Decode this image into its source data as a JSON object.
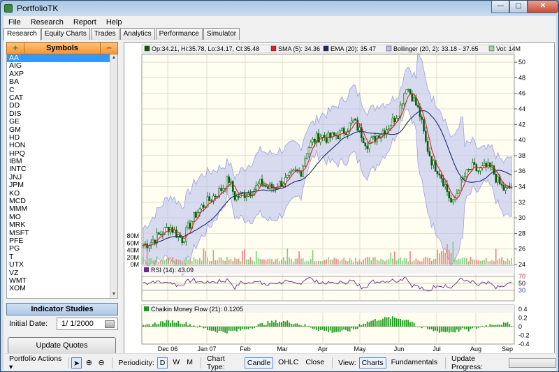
{
  "window": {
    "title": "PortfolioTK",
    "minimize": "—",
    "maximize": "▢",
    "close": "✕"
  },
  "menu": [
    "File",
    "Research",
    "Report",
    "Help"
  ],
  "tabs": [
    "Research",
    "Equity Charts",
    "Trades",
    "Analytics",
    "Performance",
    "Simulator"
  ],
  "symbols": {
    "header": "Symbols",
    "add": "+",
    "remove": "−",
    "items": [
      "AA",
      "AIG",
      "AXP",
      "BA",
      "C",
      "CAT",
      "DD",
      "DIS",
      "GE",
      "GM",
      "HD",
      "HON",
      "HPQ",
      "IBM",
      "INTC",
      "JNJ",
      "JPM",
      "KO",
      "MCD",
      "MMM",
      "MO",
      "MRK",
      "MSFT",
      "PFE",
      "PG",
      "T",
      "UTX",
      "VZ",
      "WMT",
      "XOM"
    ],
    "selected": "AA"
  },
  "indicator_studies": "Indicator Studies",
  "initial_date": {
    "label": "Initial Date:",
    "value": "1/ 1/2000"
  },
  "update_quotes": "Update Quotes",
  "legend": {
    "ohlc": "Op:34.21, Hi:35.78, Lo:34.17, Cl:35.48",
    "sma": "SMA (5): 34.36",
    "ema": "EMA (20): 35.47",
    "bollinger": "Bollinger (20, 2): 33.18 - 37.65",
    "vol": "Vol: 14M",
    "rsi": "RSI (14): 43.09",
    "cmf": "Chaikin Money Flow (21): 0.1205"
  },
  "colors": {
    "sma": "#e02020",
    "ema": "#1a2a6c",
    "bollinger": "#b8bdf0",
    "candle": "#006400",
    "vol_up": "#7ccd7c",
    "vol_down": "#f08080",
    "rsi": "#6a2a8a",
    "cmf": "#1a9a1a",
    "ohlc_sq": "#0a5a0a",
    "vol_sq": "#9ad89a"
  },
  "price_axis": [
    "50",
    "48",
    "46",
    "44",
    "42",
    "40",
    "38",
    "36",
    "34",
    "32",
    "30",
    "28",
    "26",
    "24"
  ],
  "volume_axis": [
    "80M",
    "60M",
    "40M",
    "20M",
    "0M"
  ],
  "rsi_axis": [
    "70",
    "50",
    "30"
  ],
  "cmf_axis": [
    "0.4",
    "0.2",
    "0",
    "-0.2",
    "-0.4"
  ],
  "x_axis": [
    "Dec 06",
    "Jan 07",
    "Feb",
    "Mar",
    "Apr",
    "May",
    "Jun",
    "Jul",
    "Aug",
    "Sep"
  ],
  "statusbar": {
    "portfolio_actions": "Portfolio Actions",
    "periodicity_label": "Periodicity:",
    "periodicity": [
      "D",
      "W",
      "M"
    ],
    "periodicity_selected": "D",
    "chart_type_label": "Chart Type:",
    "chart_types": [
      "Candle",
      "OHLC",
      "Close"
    ],
    "chart_type_selected": "Candle",
    "view_label": "View:",
    "views": [
      "Charts",
      "Fundamentals"
    ],
    "view_selected": "Charts",
    "progress_label": "Update Progress:"
  },
  "chart_data": {
    "type": "candlestick",
    "x_labels": [
      "Dec 06",
      "Jan 07",
      "Feb",
      "Mar",
      "Apr",
      "May",
      "Jun",
      "Jul",
      "Aug",
      "Sep"
    ],
    "ylim": [
      24,
      51
    ],
    "close_path": [
      [
        0,
        26.5
      ],
      [
        0.3,
        26.8
      ],
      [
        0.6,
        27.5
      ],
      [
        0.9,
        28.2
      ],
      [
        1.2,
        28.9
      ],
      [
        1.5,
        28.0
      ],
      [
        1.8,
        27.2
      ],
      [
        2.1,
        29.0
      ],
      [
        2.4,
        30.5
      ],
      [
        2.7,
        31.5
      ],
      [
        3.0,
        32.2
      ],
      [
        3.3,
        33.0
      ],
      [
        3.6,
        33.8
      ],
      [
        3.9,
        35.0
      ],
      [
        4.2,
        32.5
      ],
      [
        4.5,
        33.0
      ],
      [
        4.8,
        33.2
      ],
      [
        5.1,
        33.8
      ],
      [
        5.4,
        34.5
      ],
      [
        5.7,
        33.8
      ],
      [
        6.0,
        34.0
      ],
      [
        6.3,
        34.5
      ],
      [
        6.6,
        35.0
      ],
      [
        6.9,
        35.8
      ],
      [
        7.2,
        36.0
      ],
      [
        7.5,
        39.0
      ],
      [
        7.8,
        40.0
      ],
      [
        8.1,
        40.6
      ],
      [
        8.4,
        40.2
      ],
      [
        8.7,
        40.5
      ],
      [
        9.0,
        40.8
      ],
      [
        9.3,
        41.5
      ],
      [
        9.6,
        42.5
      ],
      [
        9.9,
        41.0
      ],
      [
        10.2,
        39.5
      ],
      [
        10.5,
        40.0
      ],
      [
        10.8,
        41.0
      ],
      [
        11.1,
        41.5
      ],
      [
        11.4,
        42.5
      ],
      [
        11.7,
        44.0
      ],
      [
        12.0,
        47.0
      ],
      [
        12.3,
        45.5
      ],
      [
        12.6,
        43.5
      ],
      [
        12.9,
        39.5
      ],
      [
        13.2,
        37.0
      ],
      [
        13.5,
        36.0
      ],
      [
        13.8,
        34.0
      ],
      [
        14.1,
        31.5
      ],
      [
        14.4,
        34.0
      ],
      [
        14.7,
        35.5
      ],
      [
        15.0,
        36.5
      ],
      [
        15.3,
        36.0
      ],
      [
        15.6,
        36.5
      ],
      [
        15.9,
        36.3
      ],
      [
        16.2,
        34.5
      ],
      [
        16.5,
        33.5
      ],
      [
        16.8,
        34.0
      ]
    ],
    "rsi_latest": 43.09,
    "cmf_latest": 0.1205,
    "volume_latest_millions": 14
  }
}
